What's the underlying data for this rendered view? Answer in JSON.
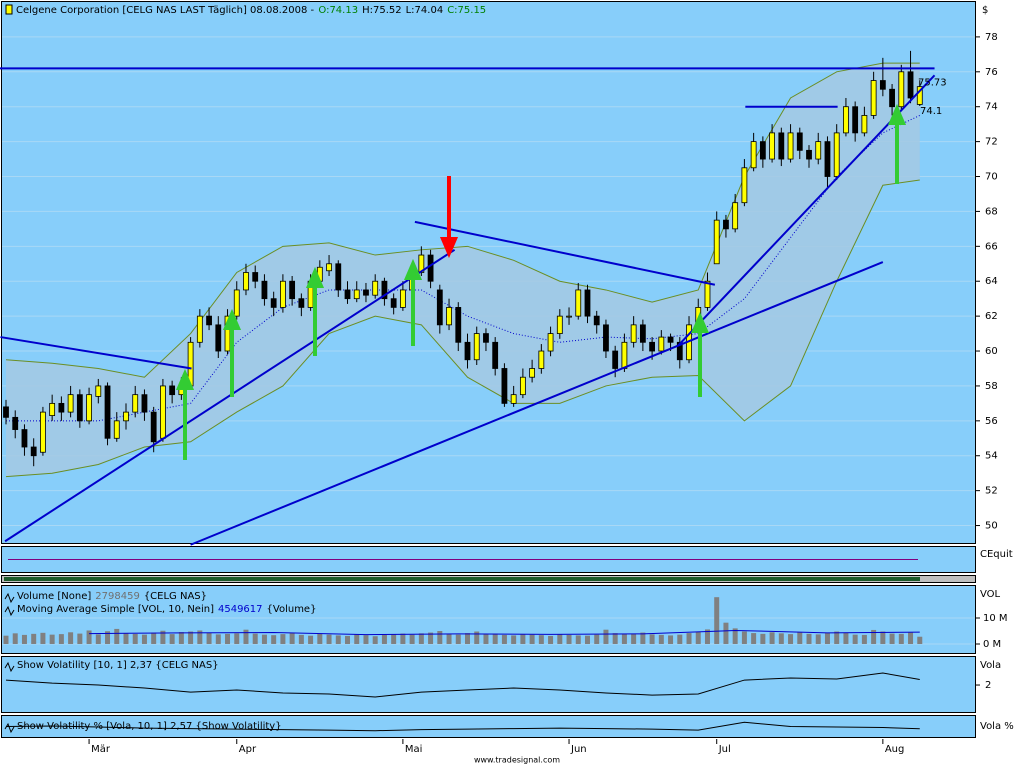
{
  "chart_data": {
    "type": "candlestick",
    "title": "Celgene Corporation [CELG NAS LAST Täglich] 08.08.2008 -",
    "ohlc_labels": [
      "O:74.13",
      "H:75.52",
      "L:74.04",
      "C:75.15"
    ],
    "currency": "$",
    "candles": [
      [
        56.8,
        57.2,
        55.8,
        56.2
      ],
      [
        56.2,
        56.6,
        55,
        55.5
      ],
      [
        55.5,
        55.8,
        54,
        54.5
      ],
      [
        54.5,
        55,
        53.4,
        54
      ],
      [
        54.2,
        56.8,
        54,
        56.5
      ],
      [
        56.3,
        57.5,
        56,
        57
      ],
      [
        57,
        57.4,
        56,
        56.5
      ],
      [
        56.5,
        58,
        56.2,
        57.5
      ],
      [
        57.5,
        57.8,
        55.6,
        56
      ],
      [
        56,
        57.9,
        55.8,
        57.5
      ],
      [
        57.4,
        58.4,
        57,
        58
      ],
      [
        58,
        58.2,
        54.6,
        55
      ],
      [
        55,
        56.5,
        54.8,
        56
      ],
      [
        56,
        57,
        55.5,
        56.5
      ],
      [
        56.5,
        58,
        56.2,
        57.5
      ],
      [
        57.5,
        57.8,
        56,
        56.5
      ],
      [
        56.5,
        56.8,
        54.2,
        54.8
      ],
      [
        55,
        58.4,
        54.8,
        58
      ],
      [
        58,
        58.3,
        57,
        57.5
      ],
      [
        57.5,
        58.5,
        57.2,
        58
      ],
      [
        58,
        60.8,
        57.8,
        60.5
      ],
      [
        60.5,
        62.4,
        60.2,
        62
      ],
      [
        62,
        62.5,
        61.2,
        61.5
      ],
      [
        61.5,
        62,
        59.6,
        60
      ],
      [
        60,
        62.4,
        59.8,
        62
      ],
      [
        62,
        64,
        61.8,
        63.5
      ],
      [
        63.5,
        65,
        63.2,
        64.5
      ],
      [
        64.5,
        64.9,
        63.6,
        64
      ],
      [
        64,
        64.4,
        62.6,
        63
      ],
      [
        63,
        63.4,
        62,
        62.5
      ],
      [
        62.5,
        64.4,
        62.2,
        64
      ],
      [
        64,
        64.3,
        62.6,
        63
      ],
      [
        63,
        63.3,
        62,
        62.5
      ],
      [
        62.5,
        64.4,
        62.3,
        64
      ],
      [
        64,
        65.2,
        63.7,
        64.8
      ],
      [
        64.6,
        65.5,
        64.3,
        65
      ],
      [
        65,
        65.2,
        63.1,
        63.5
      ],
      [
        63.5,
        64,
        62.7,
        63
      ],
      [
        63,
        64,
        62.8,
        63.5
      ],
      [
        63.5,
        63.9,
        62.8,
        63.2
      ],
      [
        63.2,
        64.4,
        63,
        64
      ],
      [
        64,
        64.2,
        62.6,
        63
      ],
      [
        63,
        63.3,
        62.1,
        62.5
      ],
      [
        62.5,
        64,
        62.3,
        63.5
      ],
      [
        63.5,
        65,
        63.2,
        64.5
      ],
      [
        64.5,
        66,
        64.3,
        65.5
      ],
      [
        65.5,
        65.8,
        63.6,
        64
      ],
      [
        63.5,
        63.8,
        61,
        61.5
      ],
      [
        61.5,
        63,
        61.2,
        62.5
      ],
      [
        62.5,
        62.8,
        60,
        60.5
      ],
      [
        60.5,
        61,
        59,
        59.5
      ],
      [
        59.5,
        61.4,
        59.2,
        61
      ],
      [
        61,
        61.3,
        60,
        60.5
      ],
      [
        60.5,
        60.8,
        58.6,
        59
      ],
      [
        59,
        59.3,
        56.8,
        57
      ],
      [
        57,
        58,
        56.8,
        57.5
      ],
      [
        57.5,
        59,
        57.3,
        58.5
      ],
      [
        58.5,
        59.5,
        58.2,
        59
      ],
      [
        59,
        60.4,
        58.7,
        60
      ],
      [
        60,
        61.4,
        59.7,
        61
      ],
      [
        61,
        62.4,
        60.7,
        62
      ],
      [
        62,
        62.5,
        61.5,
        62
      ],
      [
        62,
        63.9,
        61.8,
        63.5
      ],
      [
        63.5,
        63.8,
        61.6,
        62
      ],
      [
        62,
        62.3,
        61,
        61.5
      ],
      [
        61.5,
        61.8,
        59.6,
        60
      ],
      [
        60,
        60.3,
        58.5,
        59
      ],
      [
        59,
        61,
        58.8,
        60.5
      ],
      [
        60.5,
        62,
        60.2,
        61.5
      ],
      [
        61.5,
        61.8,
        60,
        60.5
      ],
      [
        60.5,
        60.8,
        59.5,
        60
      ],
      [
        60,
        61.2,
        59.8,
        60.8
      ],
      [
        60.8,
        61,
        60,
        60.5
      ],
      [
        60.5,
        60.8,
        59,
        59.5
      ],
      [
        59.5,
        62,
        59.3,
        61.5
      ],
      [
        61.5,
        63,
        61.3,
        62.5
      ],
      [
        62.5,
        64.5,
        62.3,
        64
      ],
      [
        65,
        68,
        65,
        67.5
      ],
      [
        67.5,
        67.8,
        66.5,
        67
      ],
      [
        67,
        69,
        66.8,
        68.5
      ],
      [
        68.5,
        71,
        68.3,
        70.5
      ],
      [
        70.5,
        72.5,
        70.3,
        72
      ],
      [
        72,
        72.3,
        70.5,
        71
      ],
      [
        71,
        73,
        70.8,
        72.5
      ],
      [
        72.5,
        72.8,
        70.6,
        71
      ],
      [
        71,
        73,
        70.8,
        72.5
      ],
      [
        72.5,
        72.8,
        71,
        71.5
      ],
      [
        71.5,
        71.8,
        70.5,
        71
      ],
      [
        71,
        72.5,
        70.7,
        72
      ],
      [
        72,
        72.3,
        69.4,
        70
      ],
      [
        70,
        73,
        69.8,
        72.5
      ],
      [
        72.5,
        74.5,
        72.3,
        74
      ],
      [
        74,
        74.3,
        72,
        72.5
      ],
      [
        72.5,
        74,
        72.3,
        73.5
      ],
      [
        73.5,
        76,
        73.3,
        75.5
      ],
      [
        75.5,
        76.8,
        74.6,
        75
      ],
      [
        75,
        75.3,
        73.5,
        74
      ],
      [
        74,
        76.4,
        73.8,
        76
      ],
      [
        76,
        77.2,
        74.2,
        74.5
      ],
      [
        74.13,
        75.52,
        74.04,
        75.15
      ]
    ],
    "ylim": [
      49,
      80
    ],
    "yticks": [
      50,
      52,
      54,
      56,
      58,
      60,
      62,
      64,
      66,
      68,
      70,
      72,
      74,
      76,
      78
    ],
    "months": {
      "labels": [
        "Mär",
        "Apr",
        "Mai",
        "Jun",
        "Jul",
        "Aug"
      ],
      "index": [
        9,
        25,
        43,
        61,
        77,
        95
      ]
    },
    "bands": {
      "index": [
        0,
        5,
        10,
        15,
        20,
        25,
        30,
        35,
        40,
        45,
        50,
        55,
        60,
        65,
        70,
        75,
        80,
        85,
        90,
        95,
        99
      ],
      "upper": [
        59.5,
        59.3,
        59,
        58.5,
        61,
        64.5,
        66,
        66.2,
        65.5,
        65.8,
        66,
        65.2,
        64,
        63.5,
        62.8,
        63.5,
        70,
        74.5,
        76,
        76.5,
        76.5
      ],
      "middle": [
        56,
        56,
        56,
        56.5,
        57,
        60.5,
        62.5,
        63.5,
        63.5,
        63.5,
        62,
        61,
        60.5,
        60.8,
        60.7,
        61,
        63,
        66.5,
        70,
        72.5,
        73.5
      ],
      "lower": [
        52.8,
        53,
        53.5,
        54.5,
        54.8,
        56.5,
        58,
        61,
        62,
        61.5,
        58.5,
        57,
        57,
        58,
        58.5,
        58.6,
        56,
        58,
        64,
        69.5,
        69.8
      ]
    },
    "trendlines": [
      {
        "points": [
          [
            -0.6,
            60.8
          ],
          [
            20.1,
            59
          ]
        ]
      },
      {
        "points": [
          [
            -0.1,
            49.1
          ],
          [
            48.6,
            65.8
          ]
        ]
      },
      {
        "points": [
          [
            20,
            48.9
          ],
          [
            95,
            65.1
          ]
        ]
      },
      {
        "points": [
          [
            44.3,
            67.4
          ],
          [
            76.8,
            63.8
          ]
        ]
      },
      {
        "points": [
          [
            72.8,
            60.3
          ],
          [
            100.6,
            75.8
          ]
        ]
      },
      {
        "points": [
          [
            -0.65,
            76.2
          ],
          [
            100.6,
            76.2
          ]
        ]
      },
      {
        "points": [
          [
            80.1,
            74
          ],
          [
            90.1,
            74
          ]
        ]
      }
    ],
    "price_labels": [
      75.73,
      74.1
    ],
    "equity": {
      "axis_label": "CEquit"
    },
    "volume": {
      "legend_name": "Volume [None]",
      "legend_value": "2798459",
      "legend_source": "{CELG NAS}",
      "axis_label": "VOL",
      "ylim": [
        -3460000,
        22300000
      ],
      "yticks": [
        {
          "value": 10000000,
          "label": "10 M"
        },
        {
          "value": 0,
          "label": "0 M"
        }
      ],
      "values": [
        3200000,
        4100000,
        3500000,
        3900000,
        4300000,
        3600000,
        3800000,
        4500000,
        4000000,
        5200000,
        3700000,
        4900000,
        5800000,
        4200000,
        3900000,
        3600000,
        4400000,
        5100000,
        3800000,
        4600000,
        4800000,
        5200000,
        4300000,
        3700000,
        3900000,
        4100000,
        5500000,
        4000000,
        3600000,
        3400000,
        3800000,
        4200000,
        3500000,
        3200000,
        3900000,
        3600000,
        3300000,
        3100000,
        3700000,
        3400000,
        3000000,
        3500000,
        3800000,
        4000000,
        3600000,
        4100000,
        4400000,
        5000000,
        3900000,
        3600000,
        4200000,
        4800000,
        3700000,
        4000000,
        3500000,
        3300000,
        3800000,
        3600000,
        3400000,
        3100000,
        3700000,
        3500000,
        3300000,
        3200000,
        3600000,
        5500000,
        4200000,
        3800000,
        3900000,
        4400000,
        3700000,
        3500000,
        3300000,
        3600000,
        4200000,
        4700000,
        5600000,
        18000000,
        8200000,
        6000000,
        4800000,
        4200000,
        3900000,
        4500000,
        4100000,
        3800000,
        4600000,
        3900000,
        3700000,
        4200000,
        4800000,
        4400000,
        3600000,
        3500000,
        5400000,
        4800000,
        4000000,
        3900000,
        4400000,
        2798459
      ],
      "ma": {
        "legend_name": "Moving Average Simple [VOL, 10, Nein]",
        "legend_value": "4549617",
        "legend_source": "{Volume}",
        "index": [
          9,
          19,
          29,
          39,
          49,
          59,
          69,
          79,
          89,
          99
        ],
        "values": [
          4000000,
          4300000,
          4400000,
          3600000,
          3900000,
          3700000,
          3900000,
          5200000,
          4300000,
          4549617
        ]
      }
    },
    "volatility": {
      "legend": "Show Volatility [10, 1] 2,37 {CELG NAS}",
      "axis_label": "Vola",
      "ylim": [
        0.2,
        3.87
      ],
      "yticks": [
        2
      ],
      "index": [
        0,
        5,
        10,
        15,
        20,
        25,
        30,
        35,
        40,
        45,
        50,
        55,
        60,
        65,
        70,
        75,
        80,
        85,
        90,
        95,
        99
      ],
      "values": [
        2.33,
        2.13,
        2,
        1.8,
        1.53,
        1.67,
        1.47,
        1.4,
        1.2,
        1.53,
        1.67,
        1.8,
        1.67,
        1.47,
        1.33,
        1.4,
        2.33,
        2.47,
        2.4,
        2.8,
        2.37
      ]
    },
    "volatility_pct": {
      "legend": "Show Volatility % [Vola, 10, 1] 2,57 {Show Volatility}",
      "axis_label": "Vola %",
      "ylim": [
        1,
        5
      ],
      "index": [
        0,
        5,
        10,
        15,
        20,
        25,
        30,
        35,
        40,
        45,
        50,
        55,
        60,
        65,
        70,
        75,
        80,
        85,
        90,
        95,
        99
      ],
      "values": [
        3,
        3.1,
        2.9,
        2.7,
        2.6,
        2.5,
        2.4,
        2.3,
        2.2,
        2.4,
        2.5,
        2.6,
        2.7,
        2.6,
        2.5,
        2.3,
        3.8,
        3,
        2.9,
        2.8,
        2.57
      ]
    },
    "footer": "www.tradesignal.com"
  }
}
